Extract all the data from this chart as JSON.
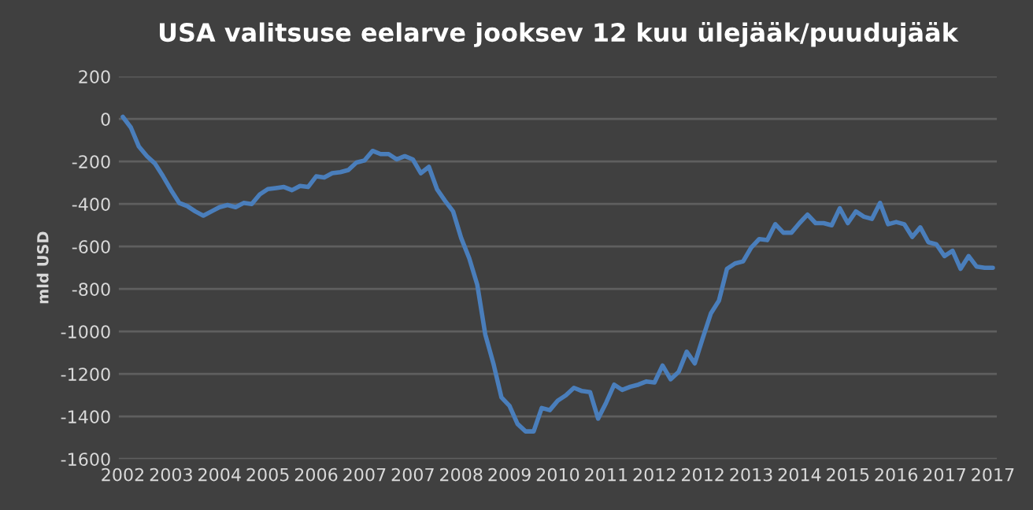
{
  "chart_data": {
    "type": "line",
    "title": "USA valitsuse eelarve jooksev 12 kuu ülejääk/puudujääk",
    "ylabel": "mld USD",
    "categories": [
      "2002",
      null,
      null,
      null,
      null,
      null,
      "2003",
      null,
      null,
      null,
      null,
      null,
      "2004",
      null,
      null,
      null,
      null,
      null,
      "2005",
      null,
      null,
      null,
      null,
      null,
      "2006",
      null,
      null,
      null,
      null,
      null,
      "2007",
      null,
      null,
      null,
      null,
      null,
      "2007",
      null,
      null,
      null,
      null,
      null,
      "2008",
      null,
      null,
      null,
      null,
      null,
      "2009",
      null,
      null,
      null,
      null,
      null,
      "2010",
      null,
      null,
      null,
      null,
      null,
      "2011",
      null,
      null,
      null,
      null,
      null,
      "2012",
      null,
      null,
      null,
      null,
      null,
      "2012",
      null,
      null,
      null,
      null,
      null,
      "2013",
      null,
      null,
      null,
      null,
      null,
      "2014",
      null,
      null,
      null,
      null,
      null,
      "2015",
      null,
      null,
      null,
      null,
      null,
      "2016",
      null,
      null,
      null,
      null,
      null,
      "2017",
      null,
      null,
      null,
      null,
      null,
      "2017"
    ],
    "series": [
      {
        "color": "#4a7ebb",
        "values": [
          10,
          -40,
          -130,
          -175,
          -210,
          -270,
          -335,
          -395,
          -410,
          -435,
          -455,
          -435,
          -415,
          -405,
          -415,
          -395,
          -400,
          -355,
          -330,
          -325,
          -320,
          -335,
          -315,
          -320,
          -270,
          -275,
          -255,
          -250,
          -240,
          -205,
          -195,
          -150,
          -165,
          -165,
          -190,
          -175,
          -190,
          -255,
          -225,
          -330,
          -385,
          -435,
          -560,
          -655,
          -780,
          -1015,
          -1150,
          -1310,
          -1350,
          -1435,
          -1470,
          -1470,
          -1360,
          -1370,
          -1325,
          -1300,
          -1265,
          -1280,
          -1285,
          -1410,
          -1335,
          -1250,
          -1275,
          -1260,
          -1250,
          -1235,
          -1240,
          -1160,
          -1225,
          -1190,
          -1095,
          -1150,
          -1030,
          -915,
          -855,
          -705,
          -680,
          -670,
          -605,
          -565,
          -570,
          -495,
          -535,
          -535,
          -490,
          -450,
          -490,
          -490,
          -500,
          -420,
          -490,
          -435,
          -460,
          -470,
          -395,
          -495,
          -485,
          -495,
          -555,
          -510,
          -580,
          -590,
          -645,
          -620,
          -705,
          -645,
          -695,
          -700,
          -700
        ]
      }
    ],
    "ylim": [
      -1600,
      200
    ],
    "yticks": [
      -1600,
      -1400,
      -1200,
      -1000,
      -800,
      -600,
      -400,
      -200,
      0,
      200
    ],
    "grid": "y",
    "marker": "none",
    "line_style": "solid",
    "legend": false
  }
}
